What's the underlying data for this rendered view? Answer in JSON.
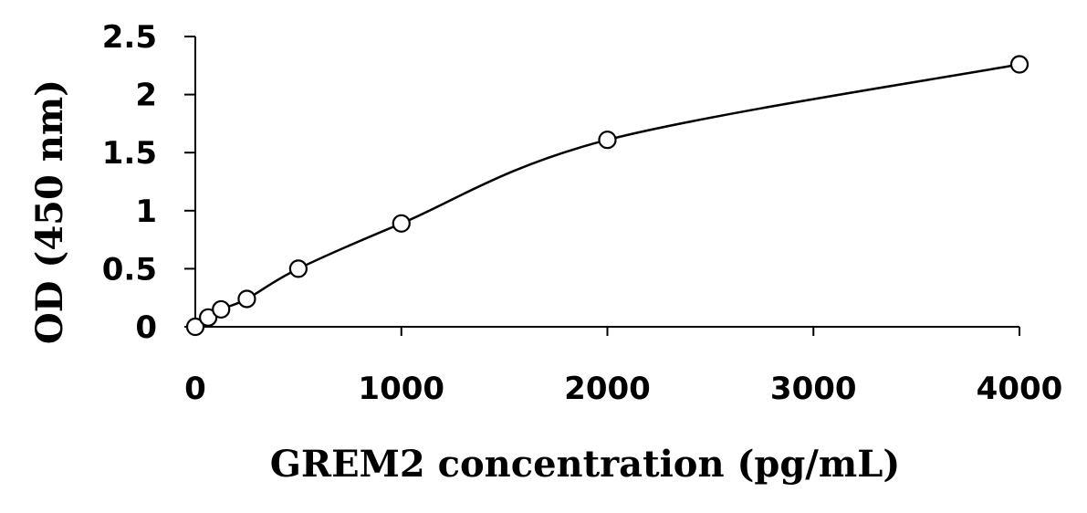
{
  "chart_data": {
    "type": "scatter",
    "title": "",
    "xlabel": "GREM2 concentration (pg/mL)",
    "ylabel": "OD (450 nm)",
    "xlim": [
      0,
      4000
    ],
    "ylim": [
      0,
      2.5
    ],
    "x_ticks": [
      "0",
      "1000",
      "2000",
      "3000",
      "4000"
    ],
    "y_ticks": [
      "0",
      "0.5",
      "1",
      "1.5",
      "2",
      "2.5"
    ],
    "grid": false,
    "legend": "none",
    "marker": "open-circle",
    "fit": "smooth-curve",
    "series": [
      {
        "x": [
          0,
          62.5,
          125,
          250,
          500,
          1000,
          2000,
          4000
        ],
        "y": [
          0.0,
          0.08,
          0.15,
          0.24,
          0.5,
          0.89,
          1.61,
          2.26
        ]
      }
    ]
  }
}
